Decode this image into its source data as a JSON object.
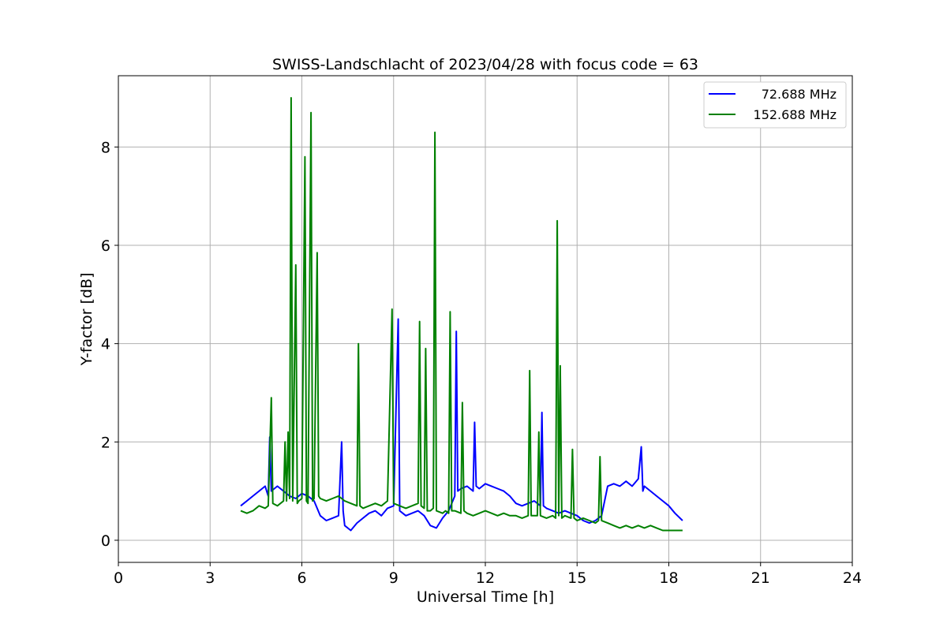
{
  "chart_data": {
    "type": "line",
    "title": "SWISS-Landschlacht of 2023/04/28 with focus code = 63",
    "xlabel": "Universal Time [h]",
    "ylabel": "Y-factor [dB]",
    "xlim": [
      0,
      24
    ],
    "ylim": [
      -0.45,
      9.45
    ],
    "xticks": [
      0,
      3,
      6,
      9,
      12,
      15,
      18,
      21,
      24
    ],
    "yticks": [
      0,
      2,
      4,
      6,
      8
    ],
    "grid": true,
    "legend_position": "top-right",
    "series": [
      {
        "name": " 72.688 MHz",
        "color": "#0000ff",
        "x": [
          4.0,
          4.2,
          4.4,
          4.6,
          4.8,
          4.9,
          4.95,
          5.0,
          5.2,
          5.4,
          5.6,
          5.8,
          6.0,
          6.2,
          6.4,
          6.6,
          6.8,
          7.0,
          7.2,
          7.3,
          7.35,
          7.4,
          7.6,
          7.8,
          8.0,
          8.2,
          8.4,
          8.6,
          8.8,
          9.0,
          9.15,
          9.2,
          9.4,
          9.6,
          9.8,
          10.0,
          10.2,
          10.4,
          10.6,
          10.8,
          11.0,
          11.05,
          11.1,
          11.2,
          11.4,
          11.6,
          11.65,
          11.7,
          11.8,
          12.0,
          12.2,
          12.4,
          12.6,
          12.8,
          13.0,
          13.2,
          13.4,
          13.6,
          13.8,
          13.85,
          13.9,
          14.0,
          14.2,
          14.4,
          14.6,
          14.8,
          15.0,
          15.2,
          15.4,
          15.6,
          15.8,
          16.0,
          16.2,
          16.4,
          16.6,
          16.8,
          17.0,
          17.1,
          17.15,
          17.2,
          17.4,
          17.6,
          17.8,
          18.0,
          18.2,
          18.45
        ],
        "y": [
          0.7,
          0.8,
          0.9,
          1.0,
          1.1,
          0.9,
          2.1,
          1.0,
          1.1,
          1.0,
          0.9,
          0.85,
          0.95,
          0.9,
          0.8,
          0.5,
          0.4,
          0.45,
          0.5,
          2.0,
          0.6,
          0.3,
          0.2,
          0.35,
          0.45,
          0.55,
          0.6,
          0.5,
          0.65,
          0.7,
          4.5,
          0.6,
          0.5,
          0.55,
          0.6,
          0.5,
          0.3,
          0.25,
          0.45,
          0.6,
          0.9,
          4.25,
          1.0,
          1.05,
          1.1,
          1.0,
          2.4,
          1.1,
          1.05,
          1.15,
          1.1,
          1.05,
          1.0,
          0.9,
          0.75,
          0.7,
          0.75,
          0.8,
          0.7,
          2.6,
          0.7,
          0.65,
          0.6,
          0.55,
          0.6,
          0.55,
          0.5,
          0.4,
          0.35,
          0.4,
          0.5,
          1.1,
          1.15,
          1.1,
          1.2,
          1.1,
          1.25,
          1.9,
          1.0,
          1.1,
          1.0,
          0.9,
          0.8,
          0.7,
          0.55,
          0.4
        ]
      },
      {
        "name": "152.688 MHz",
        "color": "#008000",
        "x": [
          4.0,
          4.2,
          4.4,
          4.6,
          4.8,
          4.9,
          5.0,
          5.05,
          5.2,
          5.4,
          5.45,
          5.5,
          5.55,
          5.6,
          5.65,
          5.7,
          5.8,
          5.85,
          5.9,
          6.0,
          6.1,
          6.15,
          6.2,
          6.3,
          6.35,
          6.4,
          6.5,
          6.55,
          6.6,
          6.8,
          7.0,
          7.2,
          7.4,
          7.6,
          7.8,
          7.85,
          7.9,
          8.0,
          8.2,
          8.4,
          8.6,
          8.8,
          8.95,
          9.0,
          9.2,
          9.4,
          9.6,
          9.8,
          9.85,
          9.9,
          10.0,
          10.05,
          10.1,
          10.2,
          10.3,
          10.35,
          10.4,
          10.6,
          10.7,
          10.8,
          10.85,
          10.9,
          11.0,
          11.2,
          11.25,
          11.3,
          11.4,
          11.6,
          11.8,
          12.0,
          12.2,
          12.4,
          12.6,
          12.8,
          13.0,
          13.2,
          13.4,
          13.45,
          13.5,
          13.7,
          13.75,
          13.8,
          14.0,
          14.2,
          14.3,
          14.35,
          14.4,
          14.45,
          14.5,
          14.6,
          14.8,
          14.85,
          14.9,
          15.0,
          15.2,
          15.4,
          15.6,
          15.7,
          15.75,
          15.8,
          16.0,
          16.2,
          16.4,
          16.6,
          16.8,
          17.0,
          17.2,
          17.4,
          17.6,
          17.8,
          18.0,
          18.2,
          18.45
        ],
        "y": [
          0.6,
          0.55,
          0.6,
          0.7,
          0.65,
          0.7,
          2.9,
          0.75,
          0.7,
          0.8,
          2.0,
          0.8,
          2.2,
          0.85,
          9.0,
          0.8,
          5.6,
          0.75,
          0.8,
          0.85,
          7.8,
          0.8,
          0.75,
          8.7,
          0.8,
          0.85,
          5.85,
          0.9,
          0.85,
          0.8,
          0.85,
          0.9,
          0.8,
          0.75,
          0.7,
          4.0,
          0.7,
          0.65,
          0.7,
          0.75,
          0.7,
          0.8,
          4.7,
          0.75,
          0.7,
          0.65,
          0.7,
          0.75,
          4.45,
          0.7,
          0.65,
          3.9,
          0.6,
          0.6,
          0.65,
          8.3,
          0.6,
          0.55,
          0.6,
          0.55,
          4.65,
          0.6,
          0.6,
          0.55,
          2.8,
          0.6,
          0.55,
          0.5,
          0.55,
          0.6,
          0.55,
          0.5,
          0.55,
          0.5,
          0.5,
          0.45,
          0.5,
          3.45,
          0.5,
          0.5,
          2.2,
          0.5,
          0.45,
          0.5,
          0.45,
          6.5,
          0.5,
          3.55,
          0.45,
          0.5,
          0.45,
          1.85,
          0.45,
          0.4,
          0.45,
          0.4,
          0.35,
          0.4,
          1.7,
          0.4,
          0.35,
          0.3,
          0.25,
          0.3,
          0.25,
          0.3,
          0.25,
          0.3,
          0.25,
          0.2,
          0.2,
          0.2,
          0.2
        ]
      }
    ]
  }
}
